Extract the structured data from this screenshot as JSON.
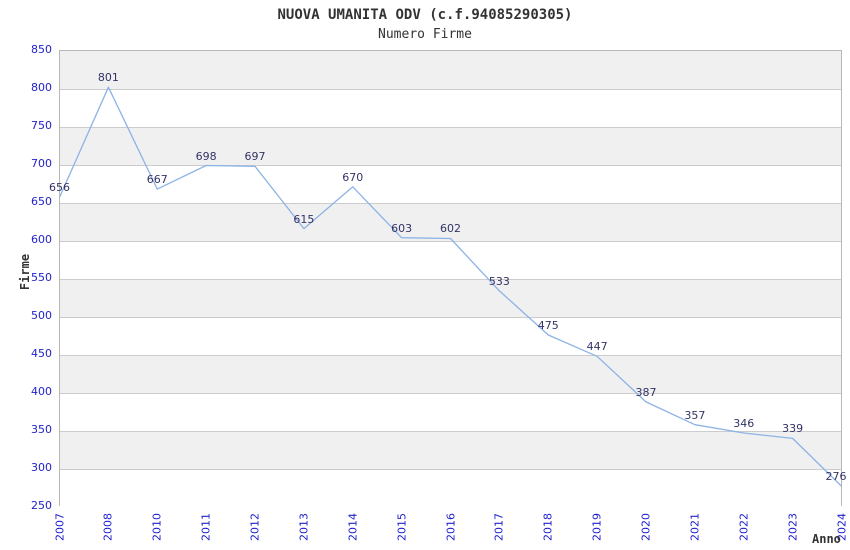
{
  "chart_data": {
    "type": "line",
    "title": "NUOVA UMANITA ODV (c.f.94085290305)",
    "subtitle": "Numero Firme",
    "xlabel": "Anno",
    "ylabel": "Firme",
    "categories": [
      "2007",
      "2008",
      "2010",
      "2011",
      "2012",
      "2013",
      "2014",
      "2015",
      "2016",
      "2017",
      "2018",
      "2019",
      "2020",
      "2021",
      "2022",
      "2023",
      "2024"
    ],
    "values": [
      656,
      801,
      667,
      698,
      697,
      615,
      670,
      603,
      602,
      533,
      475,
      447,
      387,
      357,
      346,
      339,
      276
    ],
    "ylim": [
      250,
      850
    ],
    "ytick_step": 50,
    "grid": true,
    "legend": "none",
    "colors": {
      "line": "#8cb3e6",
      "tick_labels": "#2222cc",
      "value_labels": "#333366",
      "title_text": "#333333",
      "band_gray": "#f0f0f0",
      "band_white": "#ffffff",
      "gridline": "#cccccc",
      "frame_border": "#b8b8b8"
    }
  }
}
